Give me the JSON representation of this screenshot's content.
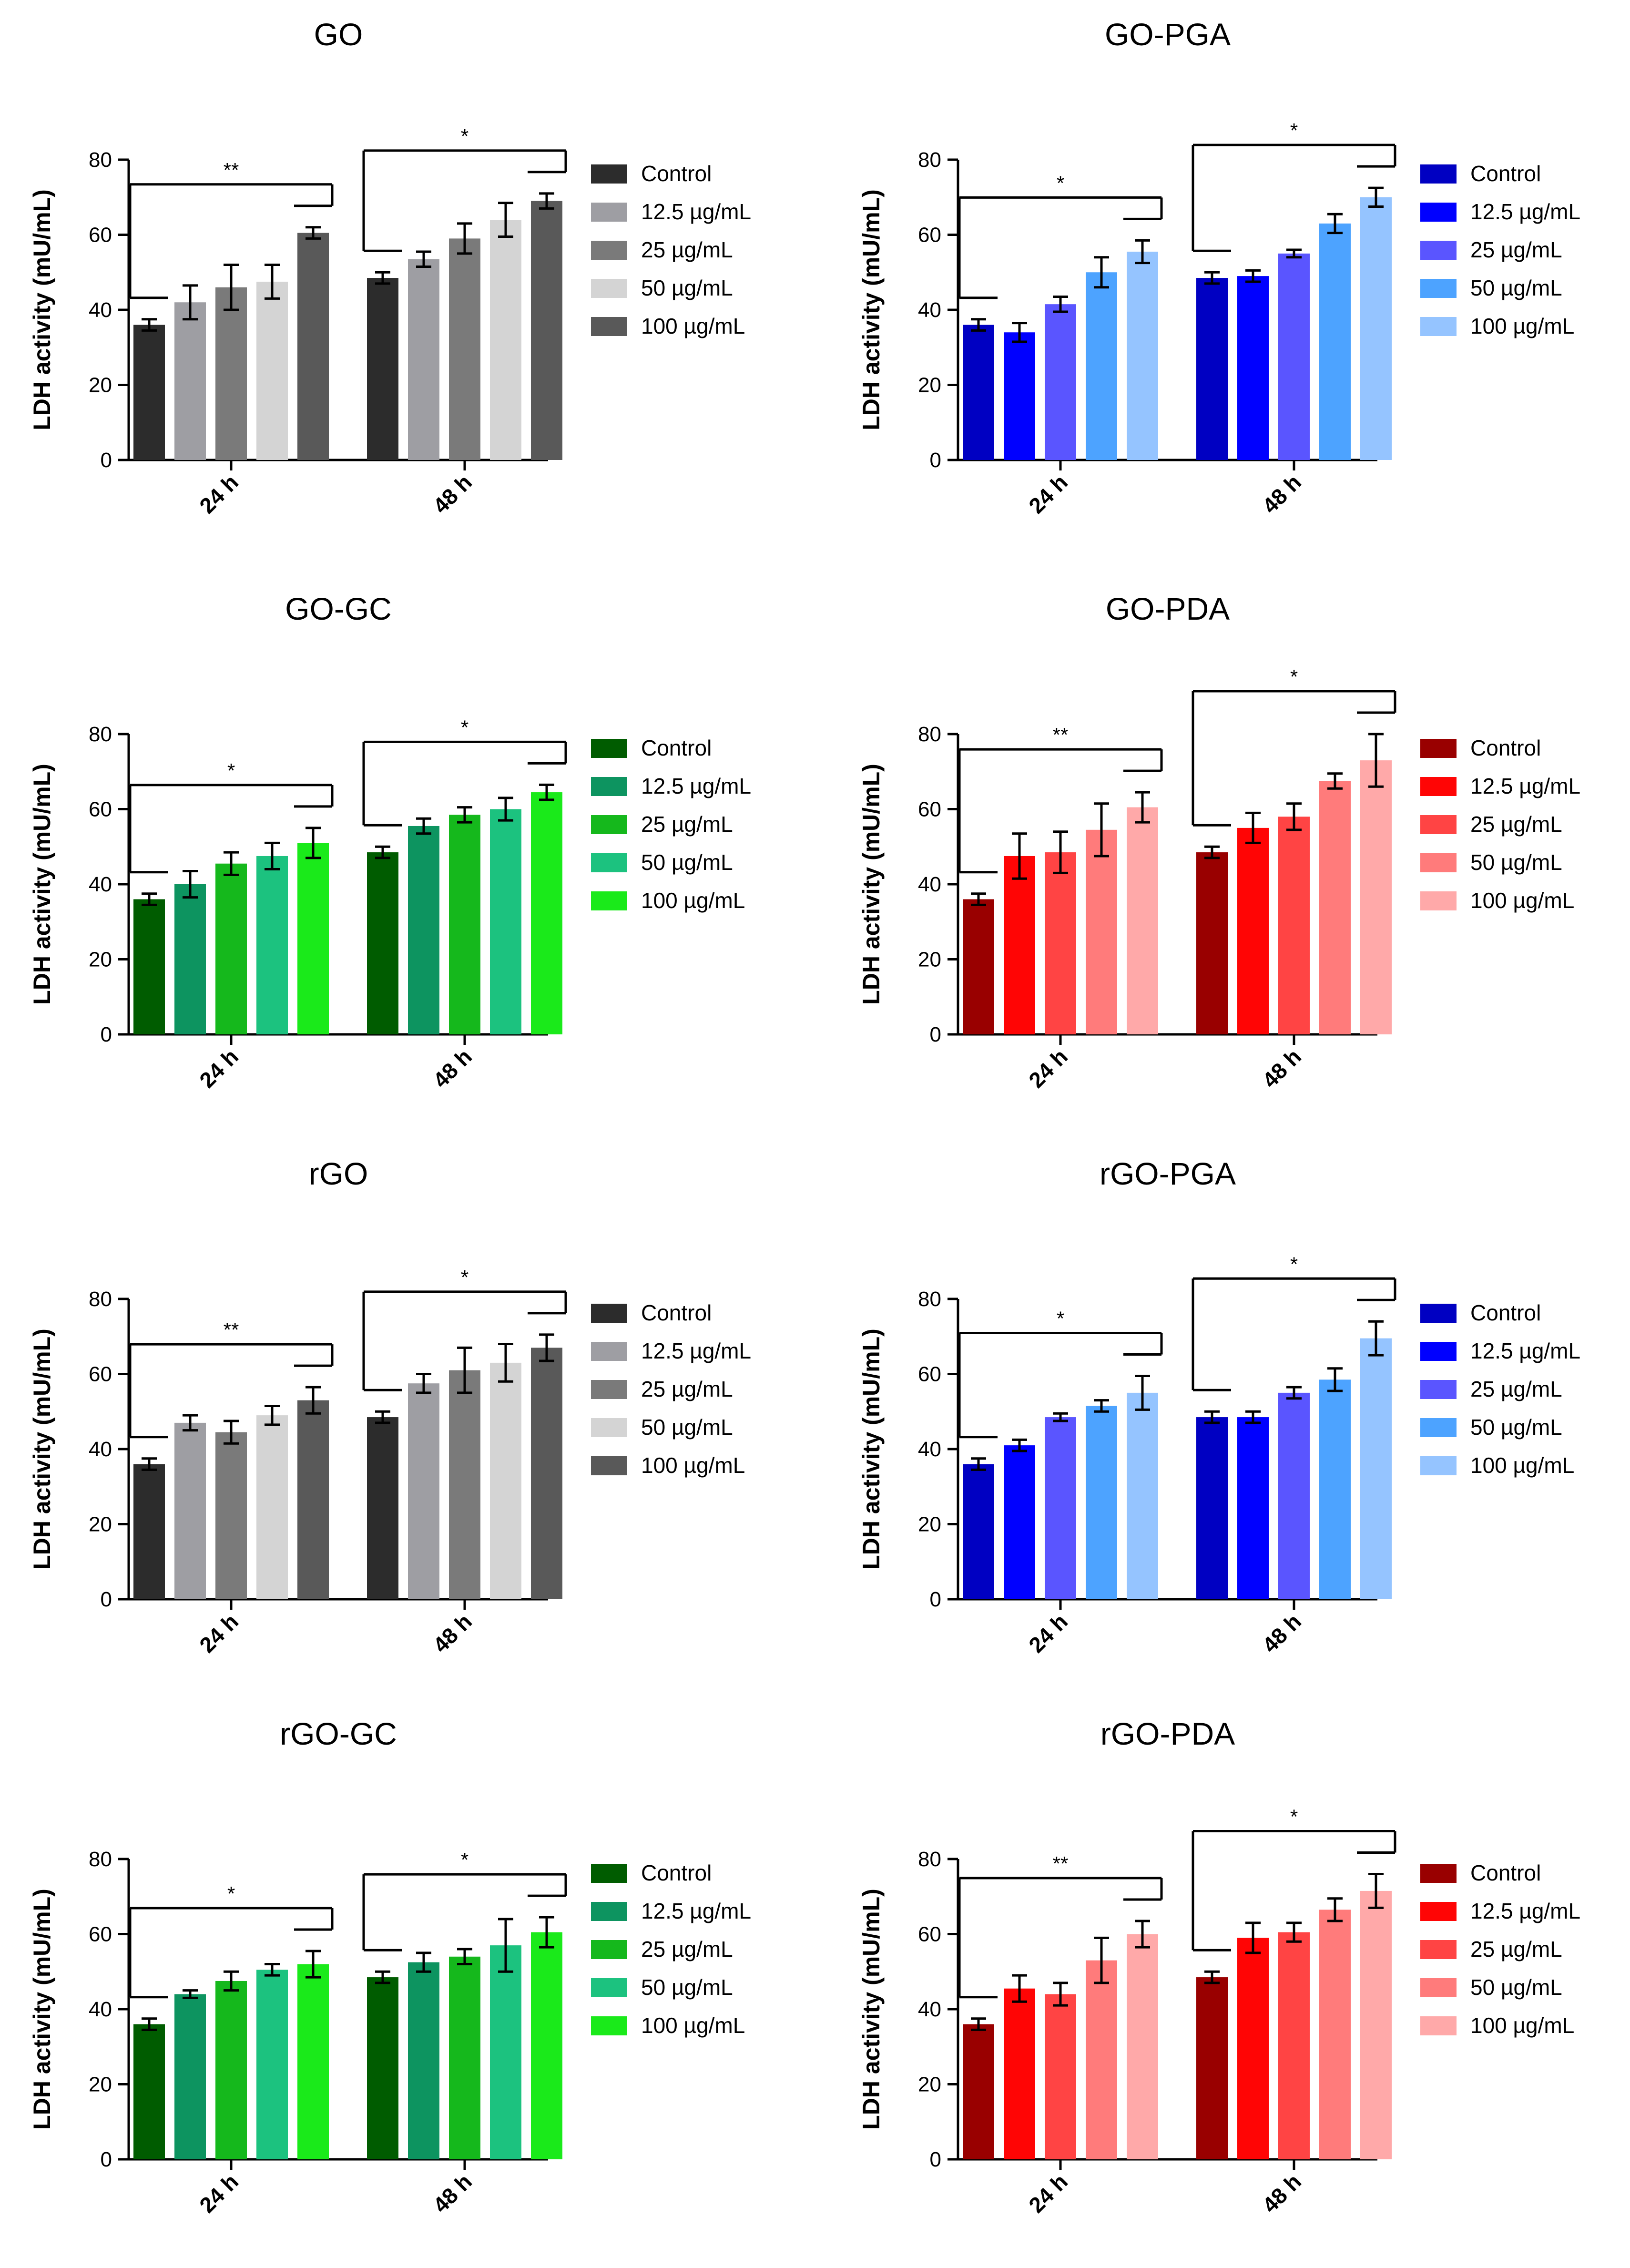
{
  "figure": {
    "panel_grid": "4 rows x 2 columns"
  },
  "chart_data": [
    {
      "type": "bar",
      "title": "GO",
      "xlabel": "",
      "ylabel": "LDH activity (mU/mL)",
      "ylim": [
        0,
        80
      ],
      "yticks": [
        0,
        20,
        40,
        60,
        80
      ],
      "categories": [
        "24 h",
        "48 h"
      ],
      "legend_position": "right",
      "series": [
        {
          "name": "Control",
          "color": "#2c2c2c",
          "values": [
            36,
            48.5
          ],
          "errors": [
            1.5,
            1.5
          ]
        },
        {
          "name": "12.5 µg/mL",
          "color": "#9e9ea3",
          "values": [
            42,
            53.5
          ],
          "errors": [
            4.5,
            2
          ]
        },
        {
          "name": "25 µg/mL",
          "color": "#7a7a7a",
          "values": [
            46,
            59
          ],
          "errors": [
            6,
            4
          ]
        },
        {
          "name": "50 µg/mL",
          "color": "#d4d4d4",
          "values": [
            47.5,
            64
          ],
          "errors": [
            4.5,
            4.5
          ]
        },
        {
          "name": "100 µg/mL",
          "color": "#595959",
          "values": [
            60.5,
            69
          ],
          "errors": [
            1.5,
            2
          ]
        }
      ],
      "significance": [
        "**",
        "*"
      ]
    },
    {
      "type": "bar",
      "title": "GO-PGA",
      "xlabel": "",
      "ylabel": "LDH activity (mU/mL)",
      "ylim": [
        0,
        80
      ],
      "yticks": [
        0,
        20,
        40,
        60,
        80
      ],
      "categories": [
        "24 h",
        "48 h"
      ],
      "legend_position": "right",
      "series": [
        {
          "name": "Control",
          "color": "#0000c2",
          "values": [
            36,
            48.5
          ],
          "errors": [
            1.5,
            1.5
          ]
        },
        {
          "name": "12.5 µg/mL",
          "color": "#0000ff",
          "values": [
            34,
            49
          ],
          "errors": [
            2.5,
            1.5
          ]
        },
        {
          "name": "25 µg/mL",
          "color": "#5a55ff",
          "values": [
            41.5,
            55
          ],
          "errors": [
            2,
            1
          ]
        },
        {
          "name": "50 µg/mL",
          "color": "#4da3ff",
          "values": [
            50,
            63
          ],
          "errors": [
            4,
            2.5
          ]
        },
        {
          "name": "100 µg/mL",
          "color": "#95c4ff",
          "values": [
            55.5,
            70
          ],
          "errors": [
            3,
            2.5
          ]
        }
      ],
      "significance": [
        "*",
        "*"
      ]
    },
    {
      "type": "bar",
      "title": "GO-GC",
      "xlabel": "",
      "ylabel": "LDH activity (mU/mL)",
      "ylim": [
        0,
        80
      ],
      "yticks": [
        0,
        20,
        40,
        60,
        80
      ],
      "categories": [
        "24 h",
        "48 h"
      ],
      "legend_position": "right",
      "series": [
        {
          "name": "Control",
          "color": "#005c00",
          "values": [
            36,
            48.5
          ],
          "errors": [
            1.5,
            1.5
          ]
        },
        {
          "name": "12.5 µg/mL",
          "color": "#0d9460",
          "values": [
            40,
            55.5
          ],
          "errors": [
            3.5,
            2
          ]
        },
        {
          "name": "25 µg/mL",
          "color": "#15b81c",
          "values": [
            45.5,
            58.5
          ],
          "errors": [
            3,
            2
          ]
        },
        {
          "name": "50 µg/mL",
          "color": "#1cc27f",
          "values": [
            47.5,
            60
          ],
          "errors": [
            3.5,
            3
          ]
        },
        {
          "name": "100 µg/mL",
          "color": "#1aea1a",
          "values": [
            51,
            64.5
          ],
          "errors": [
            4,
            2
          ]
        }
      ],
      "significance": [
        "*",
        "*"
      ]
    },
    {
      "type": "bar",
      "title": "GO-PDA",
      "xlabel": "",
      "ylabel": "LDH activity (mU/mL)",
      "ylim": [
        0,
        80
      ],
      "yticks": [
        0,
        20,
        40,
        60,
        80
      ],
      "categories": [
        "24 h",
        "48 h"
      ],
      "legend_position": "right",
      "series": [
        {
          "name": "Control",
          "color": "#990000",
          "values": [
            36,
            48.5
          ],
          "errors": [
            1.5,
            1.5
          ]
        },
        {
          "name": "12.5 µg/mL",
          "color": "#ff0505",
          "values": [
            47.5,
            55
          ],
          "errors": [
            6,
            4
          ]
        },
        {
          "name": "25 µg/mL",
          "color": "#ff4444",
          "values": [
            48.5,
            58
          ],
          "errors": [
            5.5,
            3.5
          ]
        },
        {
          "name": "50 µg/mL",
          "color": "#ff7b7b",
          "values": [
            54.5,
            67.5
          ],
          "errors": [
            7,
            2
          ]
        },
        {
          "name": "100 µg/mL",
          "color": "#ffa9a9",
          "values": [
            60.5,
            73
          ],
          "errors": [
            4,
            7
          ]
        }
      ],
      "significance": [
        "**",
        "*"
      ]
    },
    {
      "type": "bar",
      "title": "rGO",
      "xlabel": "",
      "ylabel": "LDH activity (mU/mL)",
      "ylim": [
        0,
        80
      ],
      "yticks": [
        0,
        20,
        40,
        60,
        80
      ],
      "categories": [
        "24 h",
        "48 h"
      ],
      "legend_position": "right",
      "series": [
        {
          "name": "Control",
          "color": "#2c2c2c",
          "values": [
            36,
            48.5
          ],
          "errors": [
            1.5,
            1.5
          ]
        },
        {
          "name": "12.5 µg/mL",
          "color": "#9e9ea3",
          "values": [
            47,
            57.5
          ],
          "errors": [
            2,
            2.5
          ]
        },
        {
          "name": "25 µg/mL",
          "color": "#7a7a7a",
          "values": [
            44.5,
            61
          ],
          "errors": [
            3,
            6
          ]
        },
        {
          "name": "50 µg/mL",
          "color": "#d4d4d4",
          "values": [
            49,
            63
          ],
          "errors": [
            2.5,
            5
          ]
        },
        {
          "name": "100 µg/mL",
          "color": "#595959",
          "values": [
            53,
            67
          ],
          "errors": [
            3.5,
            3.5
          ]
        }
      ],
      "significance": [
        "**",
        "*"
      ]
    },
    {
      "type": "bar",
      "title": "rGO-PGA",
      "xlabel": "",
      "ylabel": "LDH activity (mU/mL)",
      "ylim": [
        0,
        80
      ],
      "yticks": [
        0,
        20,
        40,
        60,
        80
      ],
      "categories": [
        "24 h",
        "48 h"
      ],
      "legend_position": "right",
      "series": [
        {
          "name": "Control",
          "color": "#0000c2",
          "values": [
            36,
            48.5
          ],
          "errors": [
            1.5,
            1.5
          ]
        },
        {
          "name": "12.5 µg/mL",
          "color": "#0000ff",
          "values": [
            41,
            48.5
          ],
          "errors": [
            1.5,
            1.5
          ]
        },
        {
          "name": "25 µg/mL",
          "color": "#5a55ff",
          "values": [
            48.5,
            55
          ],
          "errors": [
            1,
            1.5
          ]
        },
        {
          "name": "50 µg/mL",
          "color": "#4da3ff",
          "values": [
            51.5,
            58.5
          ],
          "errors": [
            1.5,
            3
          ]
        },
        {
          "name": "100 µg/mL",
          "color": "#95c4ff",
          "values": [
            55,
            69.5
          ],
          "errors": [
            4.5,
            4.5
          ]
        }
      ],
      "significance": [
        "*",
        "*"
      ]
    },
    {
      "type": "bar",
      "title": "rGO-GC",
      "xlabel": "",
      "ylabel": "LDH activity (mU/mL)",
      "ylim": [
        0,
        80
      ],
      "yticks": [
        0,
        20,
        40,
        60,
        80
      ],
      "categories": [
        "24 h",
        "48 h"
      ],
      "legend_position": "right",
      "series": [
        {
          "name": "Control",
          "color": "#005c00",
          "values": [
            36,
            48.5
          ],
          "errors": [
            1.5,
            1.5
          ]
        },
        {
          "name": "12.5 µg/mL",
          "color": "#0d9460",
          "values": [
            44,
            52.5
          ],
          "errors": [
            1,
            2.5
          ]
        },
        {
          "name": "25 µg/mL",
          "color": "#15b81c",
          "values": [
            47.5,
            54
          ],
          "errors": [
            2.5,
            2
          ]
        },
        {
          "name": "50 µg/mL",
          "color": "#1cc27f",
          "values": [
            50.5,
            57
          ],
          "errors": [
            1.5,
            7
          ]
        },
        {
          "name": "100 µg/mL",
          "color": "#1aea1a",
          "values": [
            52,
            60.5
          ],
          "errors": [
            3.5,
            4
          ]
        }
      ],
      "significance": [
        "*",
        "*"
      ]
    },
    {
      "type": "bar",
      "title": "rGO-PDA",
      "xlabel": "",
      "ylabel": "LDH activity (mU/mL)",
      "ylim": [
        0,
        80
      ],
      "yticks": [
        0,
        20,
        40,
        60,
        80
      ],
      "categories": [
        "24 h",
        "48 h"
      ],
      "legend_position": "right",
      "series": [
        {
          "name": "Control",
          "color": "#990000",
          "values": [
            36,
            48.5
          ],
          "errors": [
            1.5,
            1.5
          ]
        },
        {
          "name": "12.5 µg/mL",
          "color": "#ff0505",
          "values": [
            45.5,
            59
          ],
          "errors": [
            3.5,
            4
          ]
        },
        {
          "name": "25 µg/mL",
          "color": "#ff4444",
          "values": [
            44,
            60.5
          ],
          "errors": [
            3,
            2.5
          ]
        },
        {
          "name": "50 µg/mL",
          "color": "#ff7b7b",
          "values": [
            53,
            66.5
          ],
          "errors": [
            6,
            3
          ]
        },
        {
          "name": "100 µg/mL",
          "color": "#ffa9a9",
          "values": [
            60,
            71.5
          ],
          "errors": [
            3.5,
            4.5
          ]
        }
      ],
      "significance": [
        "**",
        "*"
      ]
    }
  ]
}
